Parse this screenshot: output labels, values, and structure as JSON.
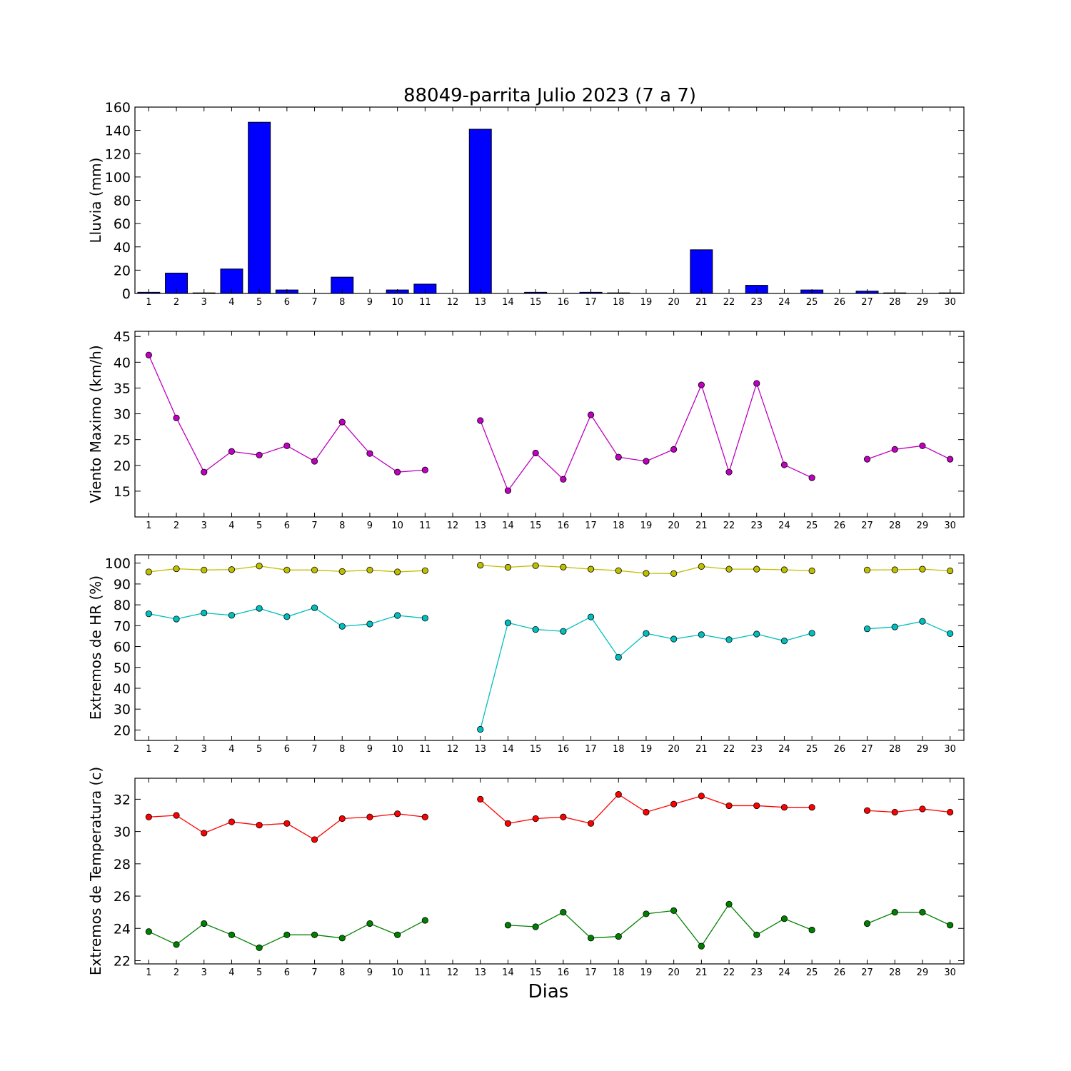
{
  "chart_data": {
    "title": "88049-parrita Julio 2023  (7 a 7)",
    "xlabel": "Dias",
    "x_ticks": [
      1,
      2,
      3,
      4,
      5,
      6,
      7,
      8,
      9,
      10,
      11,
      12,
      13,
      14,
      15,
      16,
      17,
      18,
      19,
      20,
      21,
      22,
      23,
      24,
      25,
      26,
      27,
      28,
      29,
      30
    ],
    "x_range": [
      0.5,
      30.5
    ],
    "panels": [
      {
        "id": "lluvia",
        "type": "bar",
        "ylabel": "Lluvia (mm)",
        "ylim": [
          0,
          160
        ],
        "yticks": [
          0,
          20,
          40,
          60,
          80,
          100,
          120,
          140,
          160
        ],
        "series": [
          {
            "color": "#0000ff",
            "values": [
              1.0,
              17.5,
              0.5,
              21.0,
              147.0,
              3.0,
              0,
              14.0,
              0,
              3.0,
              8.0,
              0,
              141.0,
              0,
              1.0,
              0,
              1.0,
              0.5,
              0,
              0,
              37.5,
              0,
              7.0,
              0,
              3.0,
              0,
              2.0,
              0.5,
              0,
              0.5
            ]
          }
        ]
      },
      {
        "id": "viento",
        "type": "line",
        "ylabel": "Viento Maximo (km/h)",
        "ylim": [
          10,
          46
        ],
        "yticks": [
          15,
          20,
          25,
          30,
          35,
          40,
          45
        ],
        "series": [
          {
            "color": "#bf00bf",
            "values": [
              41.4,
              29.2,
              18.7,
              22.7,
              22.0,
              23.8,
              20.8,
              28.4,
              22.3,
              18.7,
              19.1,
              null,
              28.7,
              15.1,
              22.4,
              17.3,
              29.8,
              21.6,
              20.8,
              23.1,
              35.6,
              18.7,
              35.9,
              20.1,
              17.6,
              null,
              21.2,
              23.1,
              23.8,
              21.2
            ]
          }
        ]
      },
      {
        "id": "hr",
        "type": "line",
        "ylabel": "Extremos de HR (%)",
        "ylim": [
          15,
          104
        ],
        "yticks": [
          20,
          30,
          40,
          50,
          60,
          70,
          80,
          90,
          100
        ],
        "series": [
          {
            "color": "#bfbf00",
            "values": [
              95.8,
              97.3,
              96.7,
              96.9,
              98.6,
              96.7,
              96.7,
              96.0,
              96.7,
              95.8,
              96.4,
              null,
              99.0,
              98.0,
              98.8,
              98.1,
              97.1,
              96.4,
              95.1,
              95.0,
              98.4,
              97.1,
              97.1,
              96.8,
              96.3,
              null,
              96.7,
              96.8,
              97.1,
              96.3
            ]
          },
          {
            "color": "#00bfbf",
            "values": [
              75.7,
              73.2,
              76.1,
              75.0,
              78.3,
              74.3,
              78.6,
              69.7,
              70.8,
              74.9,
              73.6,
              null,
              20.3,
              71.4,
              68.2,
              67.3,
              74.2,
              54.9,
              66.3,
              63.6,
              65.7,
              63.3,
              66.0,
              62.7,
              66.4,
              null,
              68.5,
              69.4,
              72.1,
              66.2
            ]
          }
        ]
      },
      {
        "id": "temperatura",
        "type": "line",
        "ylabel": "Extremos de Temperatura (c)",
        "ylim": [
          21.8,
          33.3
        ],
        "yticks": [
          22,
          24,
          26,
          28,
          30,
          32
        ],
        "series": [
          {
            "color": "#ff0000",
            "values": [
              30.9,
              31.0,
              29.9,
              30.6,
              30.4,
              30.5,
              29.5,
              30.8,
              30.9,
              31.1,
              30.9,
              null,
              32.0,
              30.5,
              30.8,
              30.9,
              30.5,
              32.3,
              31.2,
              31.7,
              32.2,
              31.6,
              31.6,
              31.5,
              31.5,
              null,
              31.3,
              31.2,
              31.4,
              31.2
            ]
          },
          {
            "color": "#008000",
            "values": [
              23.8,
              23.0,
              24.3,
              23.6,
              22.8,
              23.6,
              23.6,
              23.4,
              24.3,
              23.6,
              24.5,
              null,
              null,
              24.2,
              24.1,
              25.0,
              23.4,
              23.5,
              24.9,
              25.1,
              22.9,
              25.5,
              23.6,
              24.6,
              23.9,
              null,
              24.3,
              25.0,
              25.0,
              24.2
            ]
          }
        ]
      }
    ]
  }
}
